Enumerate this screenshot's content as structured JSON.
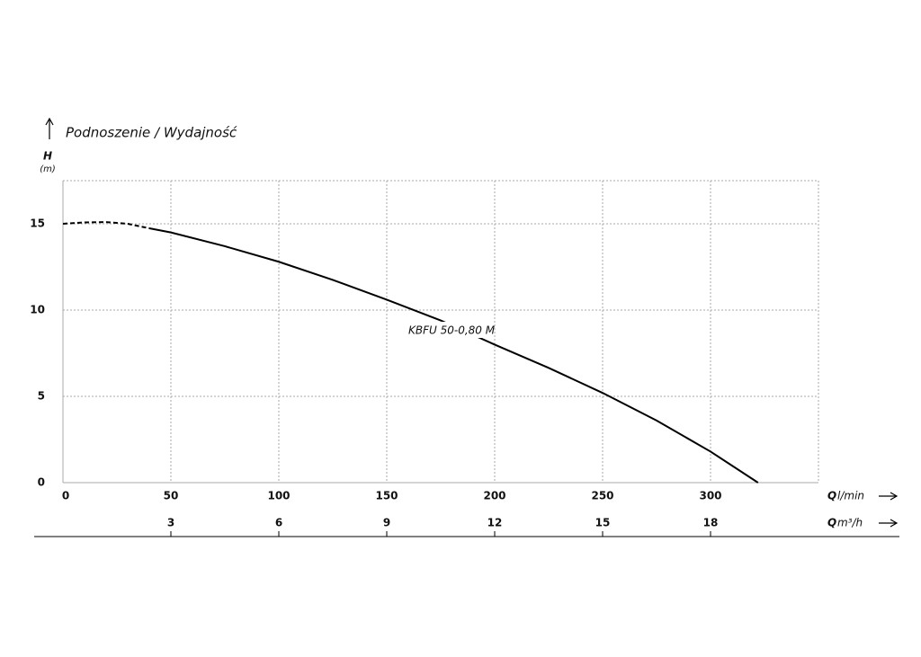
{
  "chart_data": {
    "type": "line",
    "title": "Podnoszenie / Wydajność",
    "y_label": "H",
    "y_unit": "(m)",
    "x_label": "Q",
    "x_unit": "l/min",
    "x2_label": "Q",
    "x2_unit": "m³/h",
    "xlim": [
      0,
      350
    ],
    "ylim": [
      0,
      17.5
    ],
    "x2lim": [
      0,
      21
    ],
    "xticks": [
      0,
      50,
      100,
      150,
      200,
      250,
      300
    ],
    "yticks": [
      0,
      5,
      10,
      15
    ],
    "x2ticks": [
      3,
      6,
      9,
      12,
      15,
      18
    ],
    "grid": true,
    "series": [
      {
        "color": "#000000",
        "style": "dashed",
        "x": [
          0,
          10,
          20,
          30,
          40
        ],
        "values": [
          15.0,
          15.08,
          15.1,
          15.0,
          14.74
        ]
      },
      {
        "name": "KBFU 50-0,80 M",
        "color": "#000000",
        "style": "solid",
        "x": [
          40,
          50,
          75,
          100,
          125,
          150,
          175,
          200,
          225,
          250,
          275,
          300,
          322
        ],
        "values": [
          14.74,
          14.5,
          13.7,
          12.8,
          11.75,
          10.6,
          9.4,
          8.0,
          6.65,
          5.2,
          3.6,
          1.8,
          0
        ]
      }
    ]
  }
}
